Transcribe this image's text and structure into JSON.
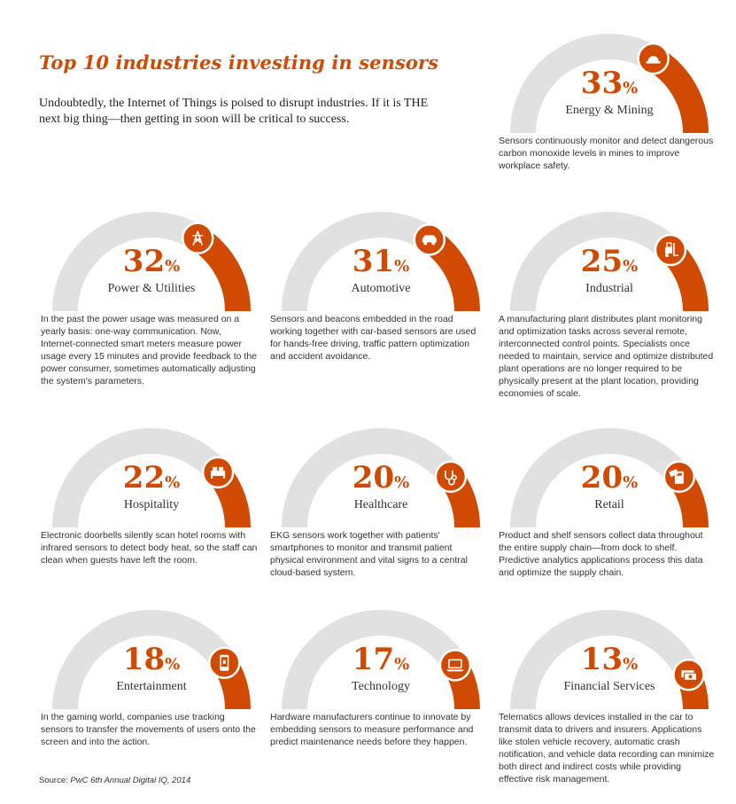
{
  "header": {
    "title": "Top 10 industries investing in sensors",
    "intro": "Undoubtedly, the Internet of Things is poised to disrupt industries. If it is THE next big thing—then getting in soon will be critical to success."
  },
  "source": {
    "prefix": "Source: ",
    "text": "PwC 6th Annual Digital IQ, 2014"
  },
  "colors": {
    "accent": "#d04a02",
    "track": "#e1e1e1",
    "text": "#333333"
  },
  "chart_data": {
    "type": "gauge",
    "unit": "%",
    "title": "Top 10 industries investing in sensors",
    "categories": [
      "Energy & Mining",
      "Power & Utilities",
      "Automotive",
      "Industrial",
      "Hospitality",
      "Healthcare",
      "Retail",
      "Entertainment",
      "Technology",
      "Financial Services"
    ],
    "values": [
      33,
      32,
      31,
      25,
      22,
      20,
      20,
      18,
      17,
      13
    ],
    "items": [
      {
        "value": 33,
        "value_label": "33",
        "label": "Energy & Mining",
        "icon": "hardhat-icon",
        "description": "Sensors continuously monitor and detect dangerous carbon monoxide levels in mines to improve workplace safety."
      },
      {
        "value": 32,
        "value_label": "32",
        "label": "Power & Utilities",
        "icon": "power-tower-icon",
        "description": "In the past the power usage was measured on a yearly basis: one-way communication. Now, Internet-connected smart meters measure power usage every 15 minutes and provide feedback to the power consumer, sometimes automatically adjusting the system's parameters."
      },
      {
        "value": 31,
        "value_label": "31",
        "label": "Automotive",
        "icon": "car-icon",
        "description": "Sensors and beacons embedded in the road working together with car-based sensors are used for hands-free driving, traffic pattern optimization and accident avoidance."
      },
      {
        "value": 25,
        "value_label": "25",
        "label": "Industrial",
        "icon": "forklift-icon",
        "description": "A manufacturing plant distributes plant monitoring and optimization tasks across several remote, interconnected control points. Specialists once needed to maintain, service and optimize distributed plant operations are no longer required to be physically present at the plant location, providing economies of scale."
      },
      {
        "value": 22,
        "value_label": "22",
        "label": "Hospitality",
        "icon": "bed-icon",
        "description": "Electronic doorbells silently scan hotel rooms with infrared sensors to detect body heat, so the staff can clean when guests have left the room."
      },
      {
        "value": 20,
        "value_label": "20",
        "label": "Healthcare",
        "icon": "stethoscope-icon",
        "description": "EKG sensors work together with patients' smartphones to monitor and transmit patient physical environment and vital signs to a central cloud-based system."
      },
      {
        "value": 20,
        "value_label": "20",
        "label": "Retail",
        "icon": "card-terminal-icon",
        "description": "Product and shelf sensors collect data throughout the entire supply chain—from dock to shelf. Predictive analytics applications process this data and optimize the supply chain."
      },
      {
        "value": 18,
        "value_label": "18",
        "label": "Entertainment",
        "icon": "smartphone-game-icon",
        "description": "In the gaming world, companies use tracking sensors to transfer the movements of users onto the screen and into the action."
      },
      {
        "value": 17,
        "value_label": "17",
        "label": "Technology",
        "icon": "laptop-icon",
        "description": "Hardware manufacturers continue to innovate by embedding sensors to measure performance and predict maintenance needs before they happen."
      },
      {
        "value": 13,
        "value_label": "13",
        "label": "Financial Services",
        "icon": "money-icon",
        "description": "Telematics allows devices installed in the car to transmit data to drivers and insurers. Applications like stolen vehicle recovery, automatic crash notification, and vehicle data recording can minimize both direct and indirect costs while providing effective risk management."
      }
    ]
  }
}
